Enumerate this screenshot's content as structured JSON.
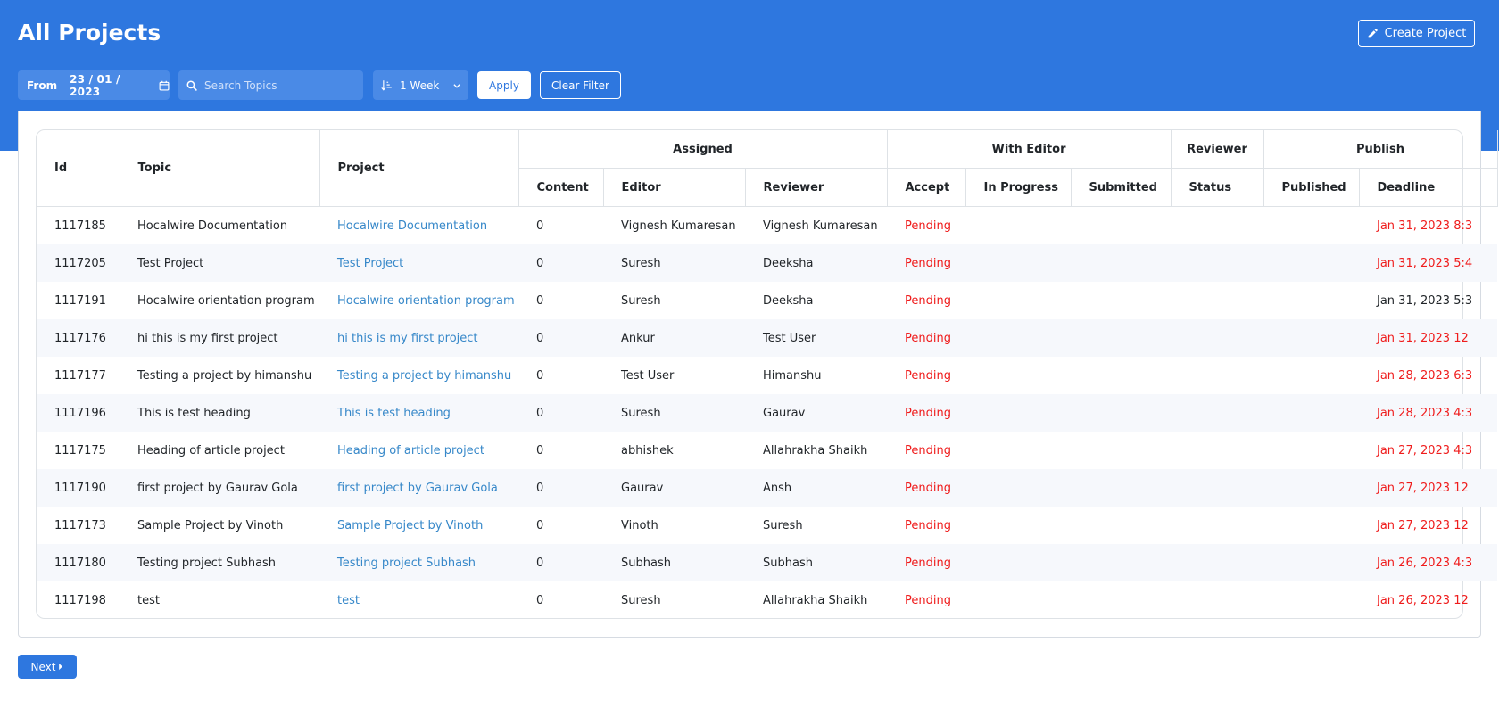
{
  "header": {
    "title": "All Projects",
    "create_label": "Create Project"
  },
  "filters": {
    "from_label": "From",
    "date_value": "23 / 01 / 2023",
    "search_placeholder": "Search Topics",
    "range_value": "1 Week",
    "apply_label": "Apply",
    "clear_label": "Clear Filter"
  },
  "table": {
    "groups": {
      "assigned": "Assigned",
      "with_editor": "With Editor",
      "reviewer": "Reviewer",
      "publish": "Publish"
    },
    "columns": {
      "id": "Id",
      "topic": "Topic",
      "project": "Project",
      "content": "Content",
      "editor": "Editor",
      "reviewer": "Reviewer",
      "accept": "Accept",
      "in_progress": "In Progress",
      "submitted": "Submitted",
      "status": "Status",
      "published": "Published",
      "deadline": "Deadline"
    },
    "rows": [
      {
        "id": "1117185",
        "topic": "Hocalwire Documentation",
        "project": "Hocalwire Documentation",
        "content": "0",
        "editor": "Vignesh Kumaresan",
        "reviewer": "Vignesh Kumaresan",
        "accept": "Pending",
        "deadline": "Jan 31, 2023 8:3",
        "overdue": true
      },
      {
        "id": "1117205",
        "topic": "Test Project",
        "project": "Test Project",
        "content": "0",
        "editor": "Suresh",
        "reviewer": "Deeksha",
        "accept": "Pending",
        "deadline": "Jan 31, 2023 5:4",
        "overdue": true
      },
      {
        "id": "1117191",
        "topic": "Hocalwire orientation program",
        "project": "Hocalwire orientation program",
        "content": "0",
        "editor": "Suresh",
        "reviewer": "Deeksha",
        "accept": "Pending",
        "deadline": "Jan 31, 2023 5:3",
        "overdue": false
      },
      {
        "id": "1117176",
        "topic": "hi this is my first project",
        "project": "hi this is my first project",
        "content": "0",
        "editor": "Ankur",
        "reviewer": "Test User",
        "accept": "Pending",
        "deadline": "Jan 31, 2023 12",
        "overdue": true
      },
      {
        "id": "1117177",
        "topic": "Testing a project by himanshu",
        "project": "Testing a project by himanshu",
        "content": "0",
        "editor": "Test User",
        "reviewer": "Himanshu",
        "accept": "Pending",
        "deadline": "Jan 28, 2023 6:3",
        "overdue": true
      },
      {
        "id": "1117196",
        "topic": "This is test heading",
        "project": "This is test heading",
        "content": "0",
        "editor": "Suresh",
        "reviewer": "Gaurav",
        "accept": "Pending",
        "deadline": "Jan 28, 2023 4:3",
        "overdue": true
      },
      {
        "id": "1117175",
        "topic": "Heading of article project",
        "project": "Heading of article project",
        "content": "0",
        "editor": "abhishek",
        "reviewer": "Allahrakha Shaikh",
        "accept": "Pending",
        "deadline": "Jan 27, 2023 4:3",
        "overdue": true
      },
      {
        "id": "1117190",
        "topic": "first project by Gaurav Gola",
        "project": "first project by Gaurav Gola",
        "content": "0",
        "editor": "Gaurav",
        "reviewer": "Ansh",
        "accept": "Pending",
        "deadline": "Jan 27, 2023 12",
        "overdue": true
      },
      {
        "id": "1117173",
        "topic": "Sample Project by Vinoth",
        "project": "Sample Project by Vinoth",
        "content": "0",
        "editor": "Vinoth",
        "reviewer": "Suresh",
        "accept": "Pending",
        "deadline": "Jan 27, 2023 12",
        "overdue": true
      },
      {
        "id": "1117180",
        "topic": "Testing project Subhash",
        "project": "Testing project Subhash",
        "content": "0",
        "editor": "Subhash",
        "reviewer": "Subhash",
        "accept": "Pending",
        "deadline": "Jan 26, 2023 4:3",
        "overdue": true
      },
      {
        "id": "1117198",
        "topic": "test",
        "project": "test",
        "content": "0",
        "editor": "Suresh",
        "reviewer": "Allahrakha Shaikh",
        "accept": "Pending",
        "deadline": "Jan 26, 2023 12",
        "overdue": true
      }
    ]
  },
  "pagination": {
    "next_label": "Next"
  },
  "colors": {
    "brand": "#2e77df",
    "link": "#3788c9",
    "pending": "#ef1c1c"
  }
}
